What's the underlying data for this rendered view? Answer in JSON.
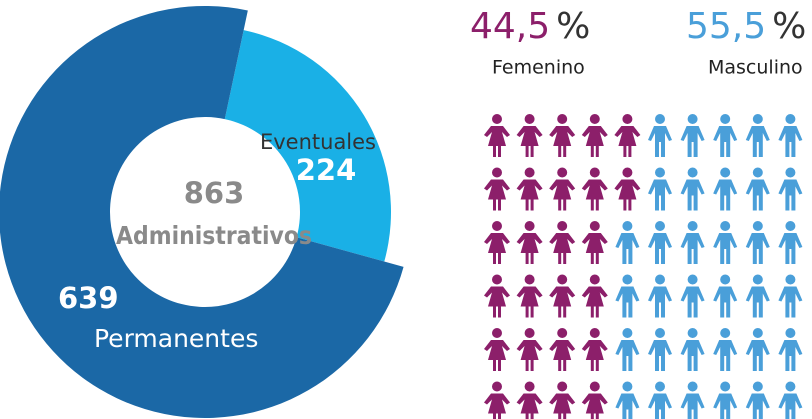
{
  "chart_data": [
    {
      "type": "donut",
      "categories": [
        "Permanentes",
        "Eventuales"
      ],
      "values": [
        639,
        224
      ],
      "colors": [
        "#1b68a6",
        "#1ab0e6"
      ],
      "total": 863,
      "total_label": "Administrativos"
    },
    {
      "type": "pictogram",
      "categories": [
        "Femenino",
        "Masculino"
      ],
      "values": [
        44.5,
        55.5
      ],
      "value_labels": [
        "44,5",
        "55,5"
      ],
      "unit": "%",
      "colors": [
        "#8c1f6a",
        "#4a9fd9"
      ],
      "icon_counts": [
        [
          5,
          5,
          4,
          4,
          4,
          4
        ],
        [
          5,
          5,
          6,
          6,
          6,
          6
        ]
      ]
    }
  ]
}
